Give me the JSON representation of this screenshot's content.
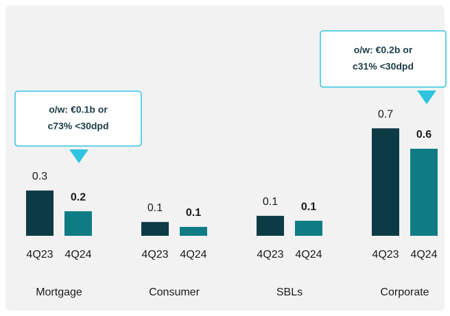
{
  "chart_data": {
    "type": "bar",
    "categories": [
      "Mortgage",
      "Consumer",
      "SBLs",
      "Corporate"
    ],
    "series": [
      {
        "name": "4Q23",
        "color": "#0d3b45",
        "values": [
          0.295,
          0.09,
          0.13,
          0.7
        ],
        "value_labels": [
          "0.3",
          "0.1",
          "0.1",
          "0.7"
        ]
      },
      {
        "name": "4Q24",
        "color": "#0f7c85",
        "values": [
          0.16,
          0.058,
          0.098,
          0.567
        ],
        "value_labels": [
          "0.2",
          "0.1",
          "0.1",
          "0.6"
        ]
      }
    ],
    "annotations": [
      [
        "o/w: €0.1b or",
        "c73% <30dpd"
      ],
      [
        "o/w: €0.2b or",
        "c31% <30dpd"
      ]
    ]
  }
}
